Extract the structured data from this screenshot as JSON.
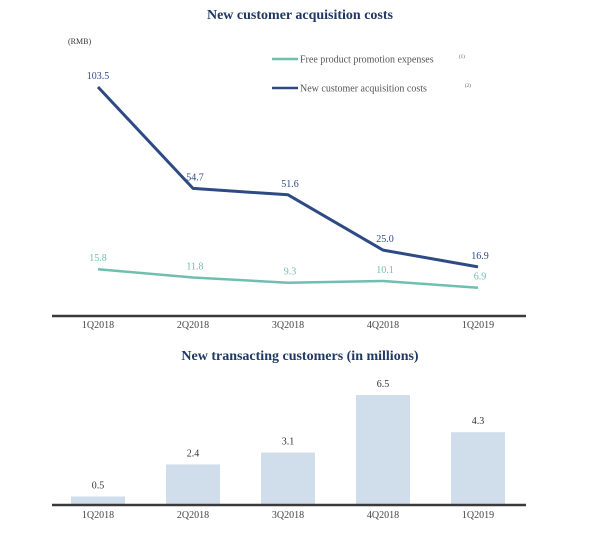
{
  "chart_data": [
    {
      "type": "line",
      "title": "New customer acquisition costs",
      "unit_label": "(RMB)",
      "categories": [
        "1Q2018",
        "2Q2018",
        "3Q2018",
        "4Q2018",
        "1Q2019"
      ],
      "series": [
        {
          "name": "Free product promotion expenses",
          "footnote": "(1)",
          "color": "#6fbfb0",
          "values": [
            15.8,
            11.8,
            9.3,
            10.1,
            6.9
          ],
          "labels": [
            "15.8",
            "11.8",
            "9.3",
            "10.1",
            "6.9"
          ]
        },
        {
          "name": "New customer acquisition costs",
          "footnote": "(2)",
          "color": "#2e4a85",
          "values": [
            103.5,
            54.7,
            51.6,
            25.0,
            16.9
          ],
          "labels": [
            "103.5",
            "54.7",
            "51.6",
            "25.0",
            "16.9"
          ]
        }
      ],
      "ylim": [
        0,
        110
      ],
      "legend": "top-right",
      "grid": false
    },
    {
      "type": "bar",
      "title": "New transacting customers (in millions)",
      "categories": [
        "1Q2018",
        "2Q2018",
        "3Q2018",
        "4Q2018",
        "1Q2019"
      ],
      "values": [
        0.5,
        2.4,
        3.1,
        6.5,
        4.3
      ],
      "labels": [
        "0.5",
        "2.4",
        "3.1",
        "6.5",
        "4.3"
      ],
      "color": "#cfdeea",
      "ylim": [
        0,
        7
      ],
      "grid": false
    }
  ]
}
